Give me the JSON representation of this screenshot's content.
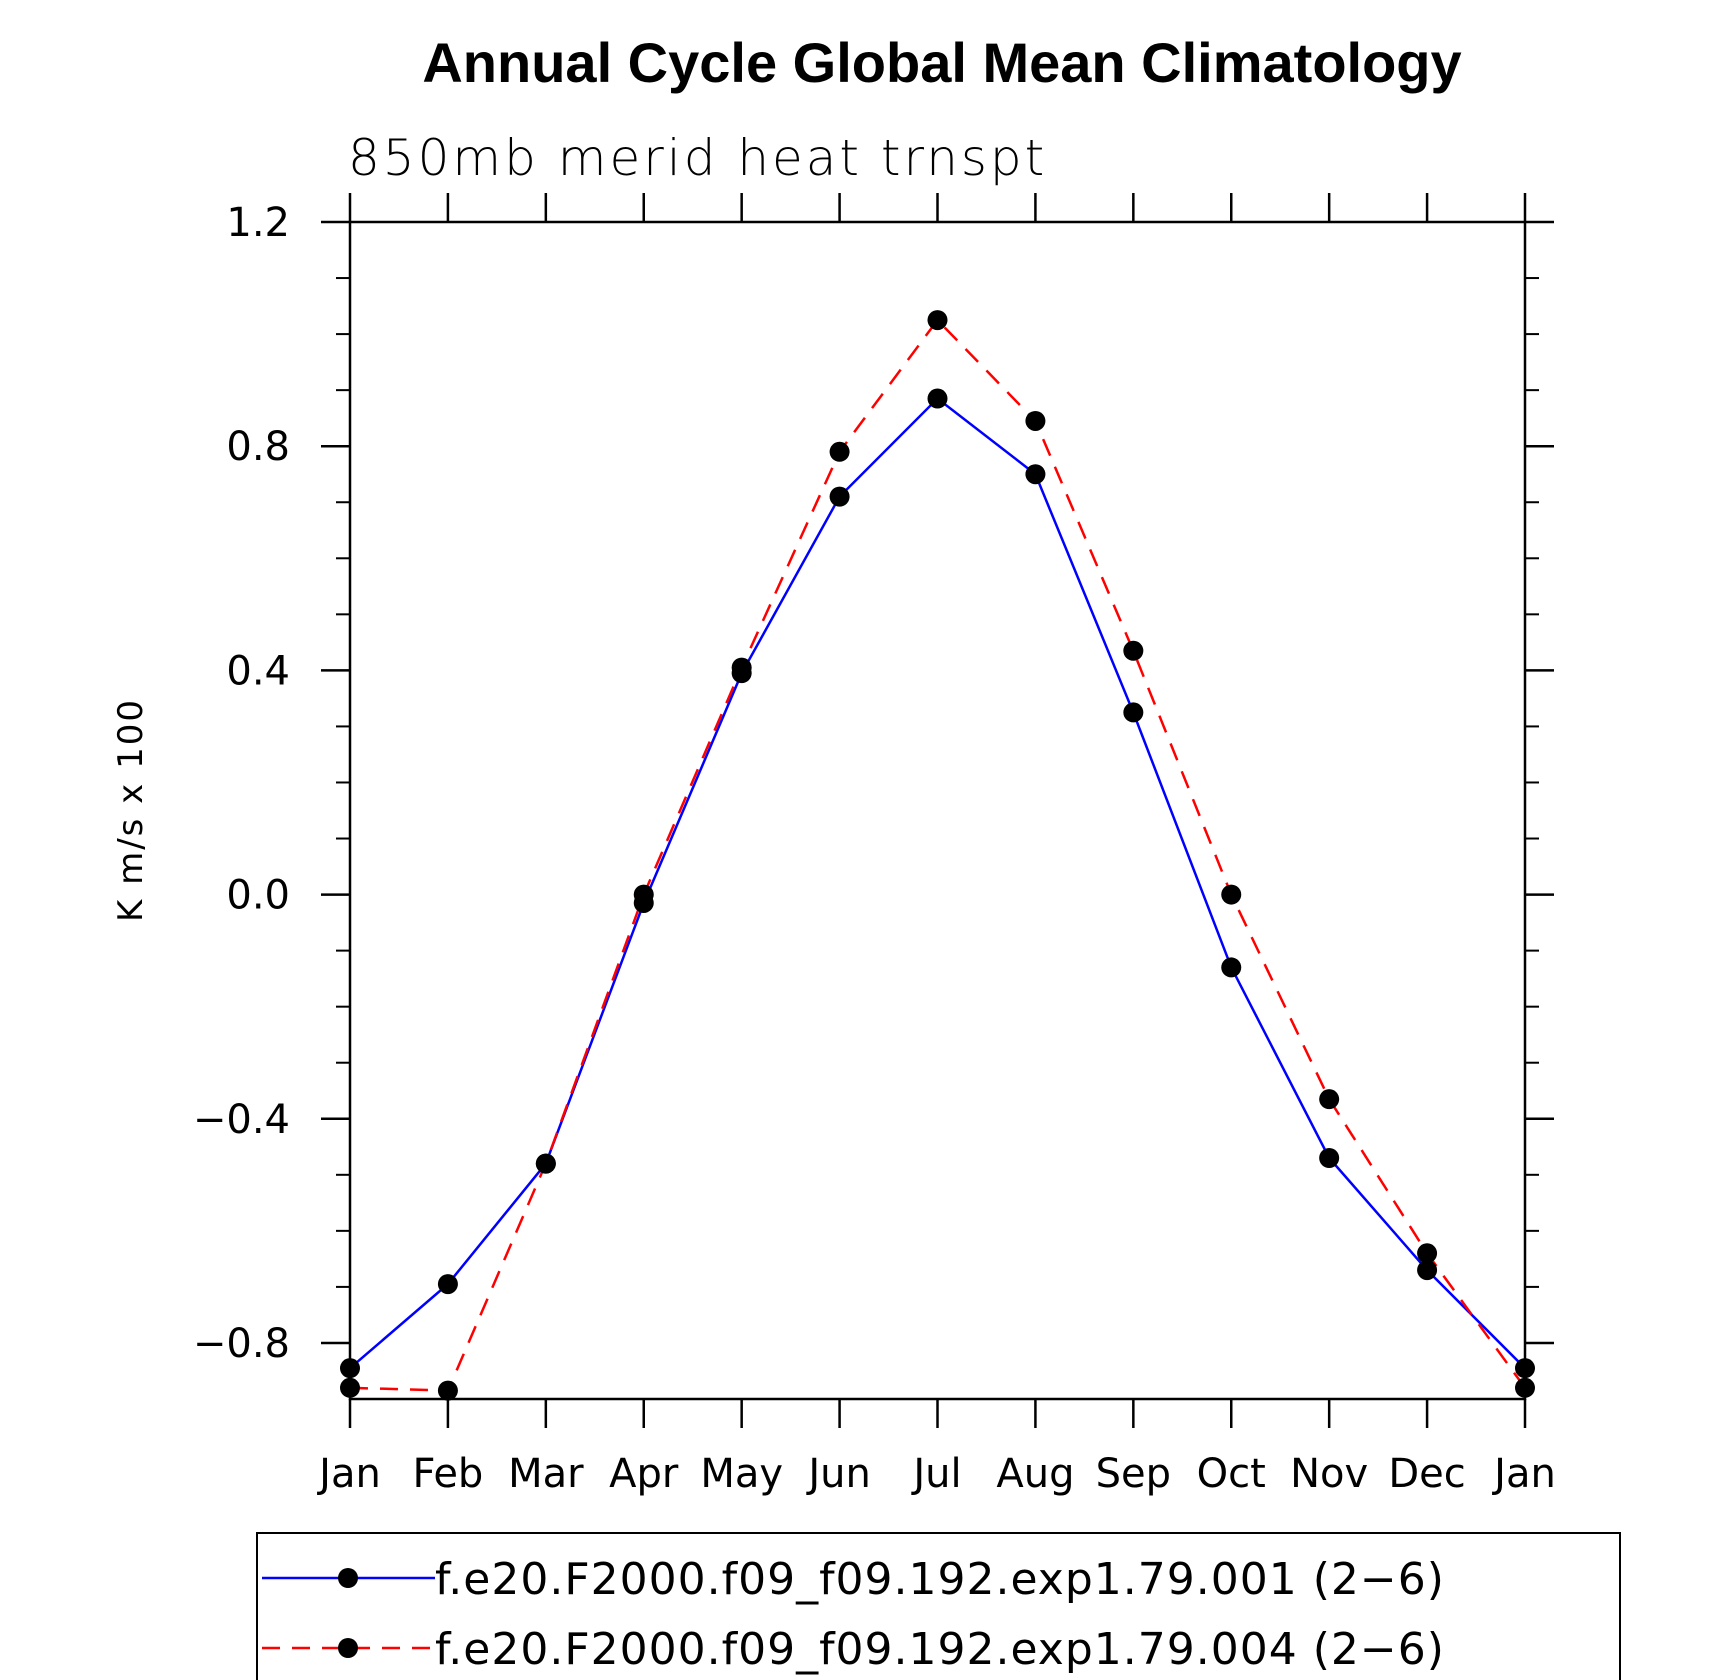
{
  "chart_data": {
    "type": "line",
    "title": "Annual Cycle Global Mean Climatology",
    "subtitle": "850mb merid heat trnspt",
    "xlabel": "",
    "ylabel": "K m/s x 100",
    "categories": [
      "Jan",
      "Feb",
      "Mar",
      "Apr",
      "May",
      "Jun",
      "Jul",
      "Aug",
      "Sep",
      "Oct",
      "Nov",
      "Dec",
      "Jan"
    ],
    "ylim": [
      -0.9,
      1.2
    ],
    "yticks": [
      "1.2",
      "0.8",
      "0.4",
      "0.0",
      "−0.4",
      "−0.8"
    ],
    "ytick_values": [
      1.2,
      0.8,
      0.4,
      0.0,
      -0.4,
      -0.8
    ],
    "series": [
      {
        "name": "f.e20.F2000.f09_f09.192.exp1.79.001 (2−6)",
        "color": "#0000ff",
        "style": "solid",
        "values": [
          -0.845,
          -0.695,
          -0.48,
          -0.015,
          0.395,
          0.71,
          0.885,
          0.75,
          0.325,
          -0.13,
          -0.47,
          -0.67,
          -0.845
        ]
      },
      {
        "name": "f.e20.F2000.f09_f09.192.exp1.79.004 (2−6)",
        "color": "#ff0000",
        "style": "dashed",
        "values": [
          -0.88,
          -0.885,
          -0.48,
          0.0,
          0.405,
          0.79,
          1.025,
          0.845,
          0.435,
          0.0,
          -0.365,
          -0.64,
          -0.88
        ]
      }
    ],
    "marker_color": "#000000",
    "grid": false,
    "legend_position": "bottom"
  }
}
